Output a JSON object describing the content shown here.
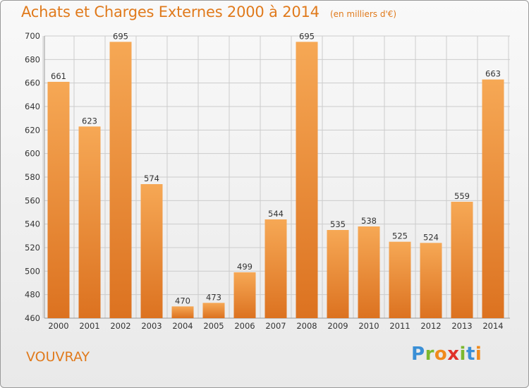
{
  "header": {
    "title": "Achats et Charges Externes 2000 à 2014",
    "unit": "(en milliers d'€)"
  },
  "footer": {
    "city": "VOUVRAY",
    "logo": "Proxiti",
    "logo_letters": [
      "P",
      "r",
      "o",
      "x",
      "i",
      "t",
      "i"
    ],
    "logo_colors": [
      "#3a8fd6",
      "#7cb82f",
      "#f08a1c",
      "#e0302a",
      "#7cb82f",
      "#3a8fd6",
      "#f08a1c"
    ]
  },
  "colors": {
    "title": "#e07a1c",
    "bar_light": "#f6a855",
    "bar_dark": "#dc7220",
    "grid": "#cccccc",
    "text": "#333333"
  },
  "chart_data": {
    "type": "bar",
    "categories": [
      "2000",
      "2001",
      "2002",
      "2003",
      "2004",
      "2005",
      "2006",
      "2007",
      "2008",
      "2009",
      "2010",
      "2011",
      "2012",
      "2013",
      "2014"
    ],
    "values": [
      661,
      623,
      695,
      574,
      470,
      473,
      499,
      544,
      695,
      535,
      538,
      525,
      524,
      559,
      663
    ],
    "ylim": [
      460,
      700
    ],
    "yticks": [
      460,
      480,
      500,
      520,
      540,
      560,
      580,
      600,
      620,
      640,
      660,
      680,
      700
    ],
    "grid": true,
    "data_labels": true
  }
}
